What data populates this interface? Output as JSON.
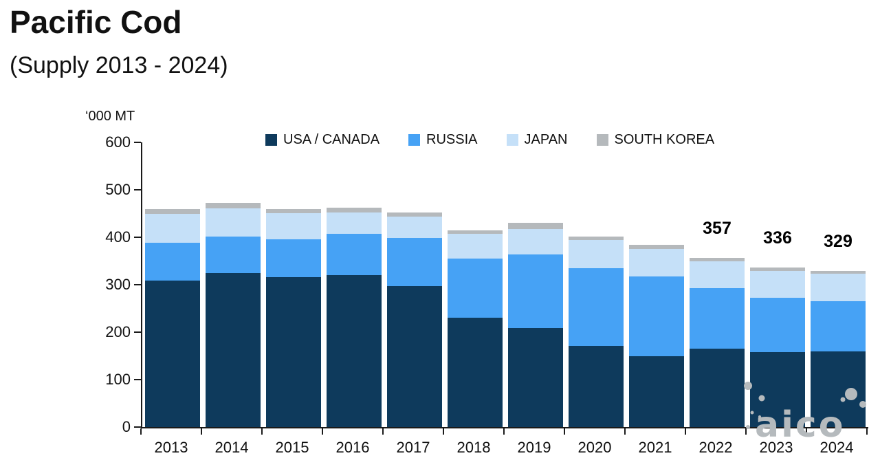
{
  "header": {
    "title": "Pacific Cod",
    "subtitle": "(Supply 2013 - 2024)"
  },
  "chart_data": {
    "type": "bar",
    "stacked": true,
    "title": "Pacific Cod (Supply 2013 - 2024)",
    "unit_label": "‘000 MT",
    "categories": [
      "2013",
      "2014",
      "2015",
      "2016",
      "2017",
      "2018",
      "2019",
      "2020",
      "2021",
      "2022",
      "2023",
      "2024"
    ],
    "series": [
      {
        "name": "USA / CANADA",
        "color": "#0e3a5c",
        "values": [
          308,
          325,
          316,
          321,
          297,
          231,
          209,
          171,
          150,
          165,
          158,
          160
        ]
      },
      {
        "name": "RUSSIA",
        "color": "#46a2f5",
        "values": [
          80,
          77,
          79,
          87,
          102,
          124,
          155,
          164,
          168,
          128,
          114,
          105
        ]
      },
      {
        "name": "JAPAN",
        "color": "#c5e0f8",
        "values": [
          62,
          59,
          56,
          44,
          44,
          52,
          54,
          59,
          58,
          56,
          57,
          58
        ]
      },
      {
        "name": "SOUTH KOREA",
        "color": "#b5b9bc",
        "values": [
          10,
          12,
          9,
          11,
          9,
          7,
          13,
          7,
          8,
          8,
          7,
          6
        ]
      }
    ],
    "annotations": [
      {
        "category": "2022",
        "text": "357"
      },
      {
        "category": "2023",
        "text": "336"
      },
      {
        "category": "2024",
        "text": "329"
      }
    ],
    "ylim": [
      0,
      600
    ],
    "y_ticks": [
      600,
      500,
      400,
      300,
      200,
      100,
      0
    ],
    "grid": false,
    "legend_position": "top",
    "axis_color": "#1a1a1a"
  },
  "watermark": {
    "text": "aico",
    "color": "#b5babd"
  }
}
